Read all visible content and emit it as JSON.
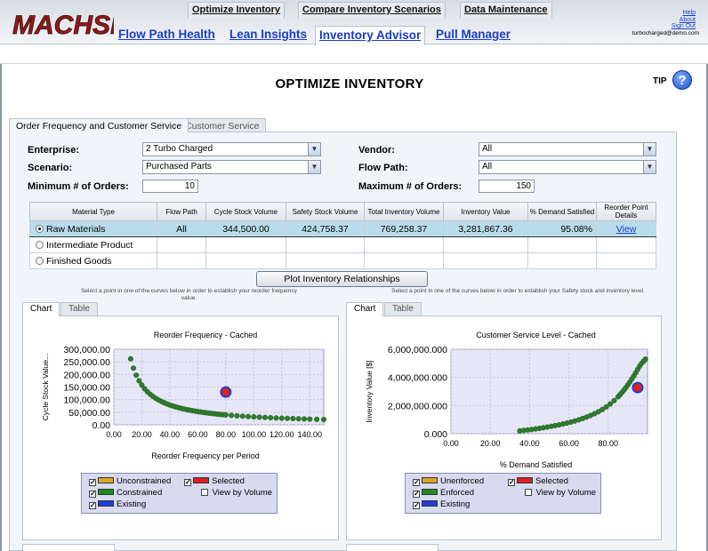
{
  "header": {
    "logo_text": "MACHSIX",
    "nav": [
      "Flow Path Health",
      "Lean Insights",
      "Inventory Advisor",
      "Pull Manager"
    ],
    "links": [
      "Help",
      "About",
      "Sign Out"
    ],
    "user_email": "turbocharged@demo.com"
  },
  "subnav": [
    "Optimize Inventory",
    "Compare Inventory Scenarios",
    "Data Maintenance"
  ],
  "page": {
    "title": "OPTIMIZE INVENTORY",
    "tip": "TIP"
  },
  "tabs": [
    "Order Frequency and Customer Service",
    "Customer Service"
  ],
  "form": {
    "enterprise_label": "Enterprise:",
    "enterprise_value": "2 Turbo Charged",
    "scenario_label": "Scenario:",
    "scenario_value": "Purchased Parts",
    "min_orders_label": "Minimum # of Orders:",
    "min_orders_value": "10",
    "vendor_label": "Vendor:",
    "vendor_value": "All",
    "flowpath_label": "Flow Path:",
    "flowpath_value": "All",
    "max_orders_label": "Maximum # of Orders:",
    "max_orders_value": "150"
  },
  "grid": {
    "headers": [
      "Material Type",
      "Flow Path",
      "Cycle Stock Volume",
      "Safety Stock Volume",
      "Total Inventory Volume",
      "Inventory Value",
      "% Demand Satisfied",
      "Reorder Point Details"
    ],
    "rows": [
      {
        "type": "Raw Materials",
        "flow": "All",
        "cycle": "344,500.00",
        "safety": "424,758.37",
        "total": "769,258.37",
        "value": "3,281,867.36",
        "pct": "95.08%",
        "link": "View"
      },
      {
        "type": "Intermediate Product"
      },
      {
        "type": "Finished Goods"
      }
    ]
  },
  "plot_button": "Plot Inventory Relationships",
  "hints": {
    "left": "Select a point in one of the curves below in order to establish your reorder frequency value.",
    "right": "Select a point in one of the curves below in order to establish your Safety stock and inventory level."
  },
  "chart_tabs": [
    "Chart",
    "Table"
  ],
  "chart_data": [
    {
      "type": "scatter",
      "title": "Reorder Frequency - Cached",
      "xlabel": "Reorder Frequency per Period",
      "ylabel": "Cycle Stock Value...",
      "xlim": [
        0,
        150
      ],
      "ylim": [
        0,
        300000
      ],
      "xticks": [
        "0.00",
        "20.00",
        "40.00",
        "60.00",
        "80.00",
        "100.00",
        "120.00",
        "140.00"
      ],
      "yticks": [
        "0.00",
        "50,000.00",
        "100,000.00",
        "150,000.00",
        "200,000.00",
        "250,000.00",
        "300,000.00"
      ],
      "grid": true,
      "series": [
        {
          "name": "Constrained",
          "color": "#2e7d2e",
          "x": [
            12,
            14,
            16,
            18,
            20,
            22,
            24,
            26,
            28,
            30,
            32,
            34,
            36,
            38,
            40,
            42,
            44,
            46,
            48,
            50,
            52,
            54,
            56,
            58,
            60,
            62,
            64,
            66,
            68,
            70,
            72,
            74,
            76,
            78,
            80,
            84,
            88,
            92,
            96,
            100,
            104,
            108,
            112,
            116,
            120,
            124,
            128,
            132,
            136,
            140,
            145,
            150
          ],
          "y": [
            262000,
            225000,
            197000,
            175000,
            158000,
            143000,
            131000,
            121000,
            112500,
            105000,
            98400,
            92600,
            87500,
            82900,
            78700,
            75000,
            71600,
            68500,
            65600,
            63000,
            60600,
            58300,
            56200,
            54300,
            52500,
            50800,
            49200,
            47700,
            46300,
            45000,
            43700,
            42500,
            41400,
            40400,
            39400,
            37500,
            35800,
            34200,
            32800,
            31500,
            30300,
            29200,
            28100,
            27200,
            26200,
            25400,
            24600,
            23900,
            23200,
            22500,
            21700,
            21000
          ]
        },
        {
          "name": "Selected",
          "color": "#e02020",
          "x": [
            80
          ],
          "y": [
            130000
          ]
        }
      ],
      "legend": [
        {
          "label": "Unconstrained",
          "color": "#d9a72a",
          "checked": true
        },
        {
          "label": "Selected",
          "color": "#e02020",
          "checked": true
        },
        {
          "label": "Constrained",
          "color": "#1f8a1f",
          "checked": true
        },
        {
          "label": "View by Volume",
          "checked": false
        },
        {
          "label": "Existing",
          "color": "#1f3de0",
          "checked": true
        }
      ]
    },
    {
      "type": "scatter",
      "title": "Customer Service Level - Cached",
      "xlabel": "% Demand Satisfied",
      "ylabel": "Inventory Value [$]",
      "xlim": [
        0,
        100
      ],
      "ylim": [
        0,
        6000000
      ],
      "xticks": [
        "0.00",
        "20.00",
        "40.00",
        "60.00",
        "80.00"
      ],
      "yticks": [
        "0.000",
        "2,000,000.000",
        "4,000,000.000",
        "6,000,000.000"
      ],
      "grid": true,
      "series": [
        {
          "name": "Enforced",
          "color": "#2e7d2e",
          "x": [
            35,
            37,
            39,
            41,
            43,
            45,
            47,
            49,
            51,
            53,
            55,
            57,
            59,
            61,
            63,
            65,
            67,
            69,
            71,
            73,
            75,
            77,
            79,
            81,
            83,
            85,
            86,
            87,
            88,
            89,
            90,
            91,
            92,
            93,
            94,
            95,
            96,
            97,
            98,
            99
          ],
          "y": [
            200000,
            230000,
            265000,
            300000,
            340000,
            380000,
            425000,
            470000,
            520000,
            575000,
            630000,
            690000,
            755000,
            825000,
            900000,
            985000,
            1080000,
            1180000,
            1290000,
            1420000,
            1560000,
            1720000,
            1900000,
            2110000,
            2350000,
            2620000,
            2770000,
            2930000,
            3100000,
            3280000,
            3470000,
            3670000,
            3880000,
            4100000,
            4330000,
            4570000,
            4800000,
            5000000,
            5150000,
            5300000
          ]
        },
        {
          "name": "Selected",
          "color": "#e02020",
          "x": [
            95
          ],
          "y": [
            3280000
          ]
        }
      ],
      "legend": [
        {
          "label": "Unenforced",
          "color": "#d9a72a",
          "checked": true
        },
        {
          "label": "Selected",
          "color": "#e02020",
          "checked": true
        },
        {
          "label": "Enforced",
          "color": "#1f8a1f",
          "checked": true
        },
        {
          "label": "View by Volume",
          "checked": false
        },
        {
          "label": "Existing",
          "color": "#1f3de0",
          "checked": true
        }
      ]
    }
  ]
}
